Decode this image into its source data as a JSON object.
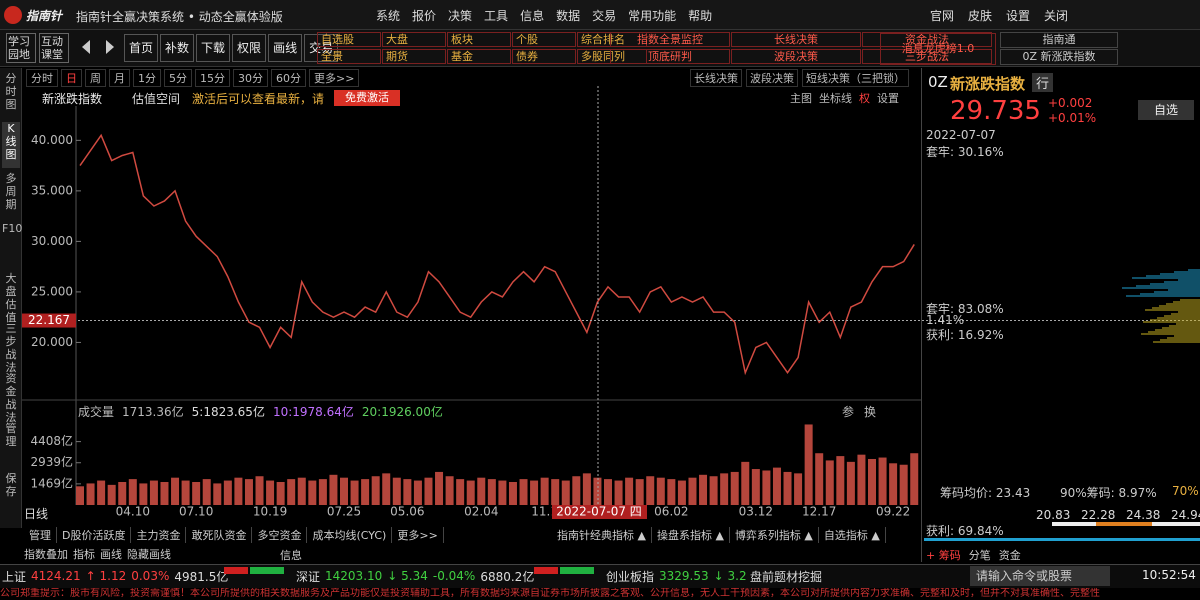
{
  "title_bar": {
    "logo": "指南针",
    "app_name": "指南针全赢决策系统 • 动态全赢体验版",
    "menu": [
      "系统",
      "报价",
      "决策",
      "工具",
      "信息",
      "数据",
      "交易",
      "常用功能",
      "帮助"
    ],
    "controls": [
      "官网",
      "皮肤",
      "设置",
      "关闭"
    ]
  },
  "toolbar": {
    "learn": "学习园地",
    "class": "互动课堂",
    "nav": [
      "首页",
      "补数",
      "下载",
      "权限",
      "画线",
      "交易"
    ],
    "grid": [
      [
        "自选股",
        "大盘",
        "板块",
        "个股",
        "综合排名"
      ],
      [
        "全景",
        "期货",
        "基金",
        "债券",
        "多股同列"
      ]
    ],
    "strategy": [
      [
        "指数全景监控",
        "长线决策",
        "资金战法"
      ],
      [
        "顶底研判",
        "波段决策",
        "三步战法"
      ]
    ],
    "news": "消息龙虎榜1.0",
    "right": [
      "指南通",
      "0Z 新涨跌指数"
    ]
  },
  "side_tabs": [
    "分时图",
    "K线图",
    "多周期",
    "F10",
    "大盘估值",
    "三步战法",
    "资金战法",
    "管理",
    "保存"
  ],
  "period_bar": {
    "periods": [
      "分时",
      "日",
      "周",
      "月",
      "1分",
      "5分",
      "15分",
      "30分",
      "60分",
      "更多>>"
    ],
    "strategies": [
      "长线决策",
      "波段决策",
      "短线决策（三把锁）"
    ]
  },
  "chart_header": {
    "name": "新涨跌指数",
    "valuation": "估值空间",
    "notice": "激活后可以查看最新，请",
    "activate": "免费激活",
    "tools": [
      "主图",
      "坐标线",
      "权",
      "设置"
    ]
  },
  "chart_data": [
    {
      "type": "line",
      "color": "#d04a40",
      "grid": false,
      "categories": [
        null,
        null,
        null,
        null,
        null,
        "04.10",
        null,
        null,
        null,
        null,
        null,
        "07.10",
        null,
        null,
        null,
        null,
        null,
        null,
        "10.19",
        null,
        null,
        null,
        null,
        null,
        null,
        "07.25",
        null,
        null,
        null,
        null,
        null,
        "05.06",
        null,
        null,
        null,
        null,
        null,
        null,
        "02.04",
        null,
        null,
        null,
        null,
        null,
        "11.1",
        null,
        null,
        null,
        null,
        null,
        null,
        null,
        null,
        null,
        null,
        null,
        "06.02",
        null,
        null,
        null,
        null,
        null,
        null,
        null,
        "03.12",
        null,
        null,
        null,
        null,
        null,
        "12.17",
        null,
        null,
        null,
        null,
        null,
        null,
        "09.22",
        null,
        null
      ],
      "values": [
        37.5,
        39,
        40.5,
        38,
        38.5,
        38.8,
        34.5,
        33.5,
        34,
        35,
        32,
        30.5,
        29.5,
        28.5,
        26.5,
        24,
        22,
        21.5,
        19.5,
        21.5,
        20.5,
        26,
        24,
        23,
        22.5,
        23,
        22.5,
        23.5,
        23,
        25,
        23,
        22.5,
        24,
        27,
        26,
        24.5,
        23,
        22.5,
        24,
        25,
        24.5,
        26,
        27,
        26,
        27.5,
        27,
        25,
        23,
        21,
        24,
        25.5,
        24.5,
        24.5,
        23,
        25,
        25.5,
        24,
        24.5,
        24,
        24.5,
        23,
        23,
        22,
        17,
        19.5,
        20,
        18.5,
        17,
        18.5,
        24,
        22,
        23,
        20.5,
        23.5,
        24,
        26,
        27.5,
        27.5,
        28,
        29.7
      ],
      "ylim": [
        14.5,
        43.4
      ],
      "yticks": [
        {
          "value": 40,
          "label": "40.000"
        },
        {
          "value": 35,
          "label": "35.000"
        },
        {
          "value": 30,
          "label": "30.000"
        },
        {
          "value": 25,
          "label": "25.000"
        },
        {
          "value": 20,
          "label": "20.000"
        }
      ],
      "crosshair": {
        "value": 22.167,
        "label": "22.167",
        "date": "2022-07-07 四"
      }
    },
    {
      "type": "bar",
      "color": "#b5463c",
      "grid": false,
      "values": [
        1300,
        1500,
        1700,
        1400,
        1600,
        1800,
        1500,
        1700,
        1600,
        1900,
        1700,
        1600,
        1800,
        1500,
        1700,
        1900,
        1800,
        2000,
        1700,
        1600,
        1800,
        1900,
        1700,
        1800,
        2100,
        1900,
        1700,
        1800,
        2000,
        2200,
        1900,
        1800,
        1700,
        1900,
        2300,
        2000,
        1800,
        1700,
        1900,
        1800,
        1700,
        1600,
        1800,
        1700,
        1900,
        1800,
        1700,
        2000,
        2200,
        1900,
        1800,
        1700,
        1900,
        1800,
        2000,
        1900,
        1800,
        1700,
        1900,
        2100,
        2000,
        2200,
        2300,
        3000,
        2500,
        2400,
        2600,
        2300,
        2200,
        5600,
        3600,
        3100,
        3400,
        3000,
        3500,
        3200,
        3300,
        2900,
        2800,
        3600
      ],
      "ylim": [
        0,
        6050
      ],
      "yticks": [
        {
          "value": 4408,
          "label": "4408亿"
        },
        {
          "value": 2939,
          "label": "2939亿"
        },
        {
          "value": 1469,
          "label": "1469亿"
        }
      ]
    }
  ],
  "volume_header": {
    "label": "成交量",
    "total": "1713.36亿",
    "ma5": "5:1823.65亿",
    "ma10": "10:1978.64亿",
    "ma20": "20:1926.00亿",
    "tools": [
      "参",
      "换"
    ]
  },
  "period_label": "日线",
  "indicator_tabs": {
    "left": [
      "管理",
      "D股价活跃度",
      "主力资金",
      "敢死队资金",
      "多空资金",
      "成本均线(CYC)",
      "更多>>"
    ],
    "right": [
      "指南针经典指标 ▲",
      "操盘系指标 ▲",
      "博弈系列指标 ▲",
      "自选指标 ▲"
    ]
  },
  "drawing_bar": {
    "items": [
      "指数叠加",
      "指标",
      "画线",
      "隐藏画线"
    ],
    "info": "信息"
  },
  "quote": {
    "code": "0Z",
    "name": "新涨跌指数",
    "tag": "行",
    "price": "29.735",
    "change": "+0.002",
    "pct": "+0.01%",
    "add": "自选"
  },
  "chips": {
    "date": "2022-07-07",
    "trapped": "套牢: 30.16%",
    "trapped2": "套牢: 83.08%",
    "ratio": "1.41%",
    "profit": "获利: 16.92%",
    "avg": "筹码均价: 23.43",
    "c90": "90%筹码: 8.97%",
    "c70": "70%",
    "profit2": "获利: 69.84%",
    "scale": [
      "20.83",
      "22.28",
      "24.38",
      "24.94"
    ],
    "tabs": [
      "+ 筹码",
      "分笔",
      "资金"
    ]
  },
  "status_bar": {
    "sh": {
      "name": "上证",
      "value": "4124.21",
      "change": "↑ 1.12",
      "pct": "0.03%",
      "amount": "4981.5亿"
    },
    "sz": {
      "name": "深证",
      "value": "14203.10",
      "change": "↓ 5.34",
      "pct": "-0.04%",
      "amount": "6880.2亿"
    },
    "cyb": {
      "name": "创业板指",
      "value": "3329.53",
      "change": "↓ 3.2"
    },
    "hot": "盘前题材挖掘",
    "command": "请输入命令或股票",
    "time": "10:52:54"
  },
  "disclaimer": "公司郑重提示：股市有风险，投资需谨慎！本公司所提供的相关数据服务及产品功能仅是投资辅助工具，所有数据均来源自证券市场所披露之客观、公开信息，无人工干预因素，本公司对所提供内容力求准确、完整和及时，但并不对其准确性、完整性"
}
